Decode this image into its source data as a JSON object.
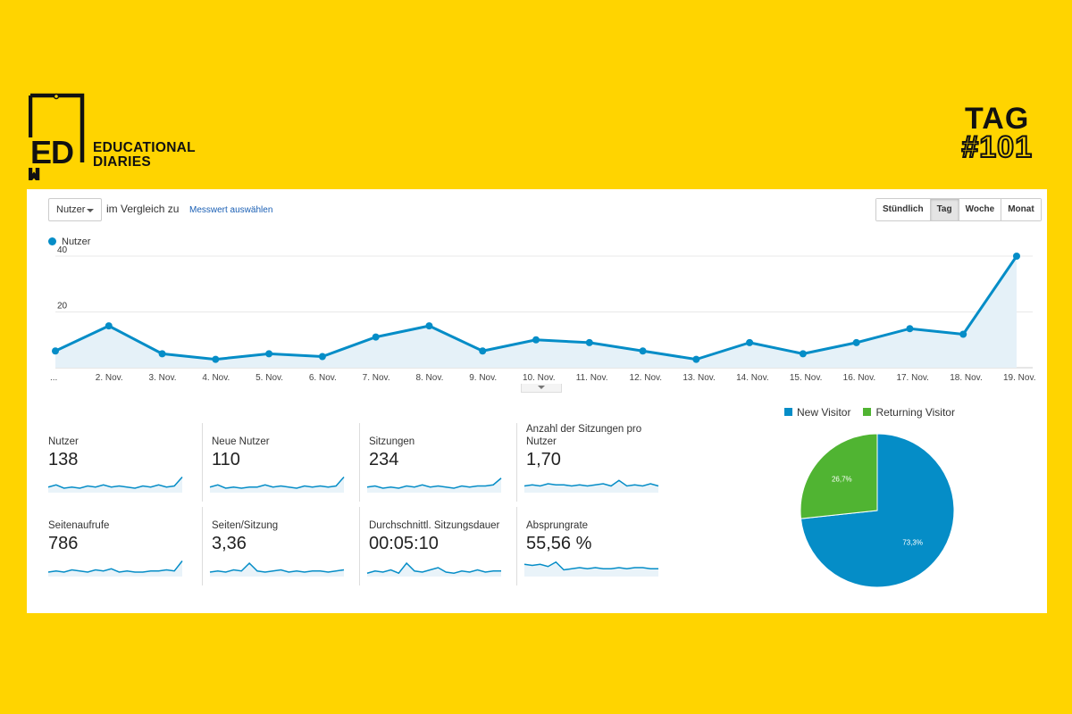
{
  "brand": {
    "logo_letters": "ED",
    "name_line1": "EDUCATIONAL",
    "name_line2": "DIARIES"
  },
  "tag": {
    "word": "TAG",
    "number": "#101"
  },
  "toolbar": {
    "metric_select": "Nutzer",
    "compare_text": "im Vergleich zu",
    "compare_link": "Messwert auswählen",
    "granularity": [
      "Stündlich",
      "Tag",
      "Woche",
      "Monat"
    ],
    "granularity_selected": "Tag"
  },
  "colors": {
    "series": "#058DC7",
    "new_visitor": "#058DC7",
    "returning_visitor": "#50B432",
    "background": "#FFD400"
  },
  "chart_data": [
    {
      "type": "area",
      "series": [
        {
          "name": "Nutzer",
          "values": [
            6,
            15,
            5,
            3,
            5,
            4,
            11,
            15,
            6,
            10,
            9,
            6,
            3,
            9,
            5,
            9,
            14,
            12,
            40
          ]
        }
      ],
      "x_labels": [
        "...",
        "2. Nov.",
        "3. Nov.",
        "4. Nov.",
        "5. Nov.",
        "6. Nov.",
        "7. Nov.",
        "8. Nov.",
        "9. Nov.",
        "10. Nov.",
        "11. Nov.",
        "12. Nov.",
        "13. Nov.",
        "14. Nov.",
        "15. Nov.",
        "16. Nov.",
        "17. Nov.",
        "18. Nov.",
        "19. Nov."
      ],
      "y_ticks": [
        "20",
        "40"
      ],
      "ylim": [
        0,
        40
      ],
      "grid": true,
      "legend": "top-left"
    },
    {
      "type": "pie",
      "categories": [
        "New Visitor",
        "Returning Visitor"
      ],
      "values": [
        73.3,
        26.7
      ],
      "labels": [
        "73,3%",
        "26,7%"
      ],
      "legend": "top"
    }
  ],
  "scorecards": [
    {
      "label": "Nutzer",
      "value": "138",
      "spark": [
        5,
        7,
        4,
        5,
        4,
        6,
        5,
        7,
        5,
        6,
        5,
        4,
        6,
        5,
        7,
        5,
        6,
        14
      ]
    },
    {
      "label": "Neue Nutzer",
      "value": "110",
      "spark": [
        5,
        7,
        4,
        5,
        4,
        5,
        5,
        7,
        5,
        6,
        5,
        4,
        6,
        5,
        6,
        5,
        6,
        14
      ]
    },
    {
      "label": "Sitzungen",
      "value": "234",
      "spark": [
        5,
        6,
        4,
        5,
        4,
        6,
        5,
        7,
        5,
        6,
        5,
        4,
        6,
        5,
        6,
        6,
        7,
        13
      ]
    },
    {
      "label": "Anzahl der Sitzungen pro Nutzer",
      "value": "1,70",
      "spark": [
        6,
        7,
        6,
        8,
        7,
        7,
        6,
        7,
        6,
        7,
        8,
        6,
        11,
        6,
        7,
        6,
        8,
        6
      ]
    },
    {
      "label": "Seitenaufrufe",
      "value": "786",
      "spark": [
        4,
        5,
        4,
        6,
        5,
        4,
        6,
        5,
        7,
        4,
        5,
        4,
        4,
        5,
        5,
        6,
        5,
        14
      ]
    },
    {
      "label": "Seiten/Sitzung",
      "value": "3,36",
      "spark": [
        4,
        5,
        4,
        6,
        5,
        12,
        5,
        4,
        5,
        6,
        4,
        5,
        4,
        5,
        5,
        4,
        5,
        6
      ]
    },
    {
      "label": "Durchschnittl. Sitzungsdauer",
      "value": "00:05:10",
      "spark": [
        3,
        5,
        4,
        6,
        3,
        12,
        5,
        4,
        6,
        8,
        4,
        3,
        5,
        4,
        6,
        4,
        5,
        5
      ]
    },
    {
      "label": "Absprungrate",
      "value": "55,56 %",
      "spark": [
        11,
        10,
        11,
        9,
        13,
        6,
        7,
        8,
        7,
        8,
        7,
        7,
        8,
        7,
        8,
        8,
        7,
        7
      ]
    }
  ]
}
